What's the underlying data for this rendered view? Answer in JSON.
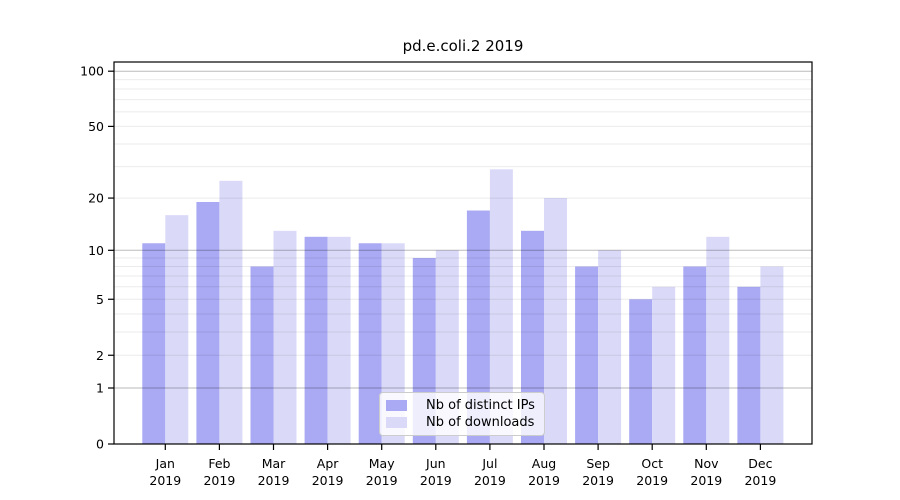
{
  "chart_data": {
    "type": "bar",
    "title": "pd.e.coli.2 2019",
    "categories": [
      "Jan 2019",
      "Feb 2019",
      "Mar 2019",
      "Apr 2019",
      "May 2019",
      "Jun 2019",
      "Jul 2019",
      "Aug 2019",
      "Sep 2019",
      "Oct 2019",
      "Nov 2019",
      "Dec 2019"
    ],
    "series": [
      {
        "name": "Nb of distinct IPs",
        "color": "#a9a9f4",
        "values": [
          11,
          19,
          8,
          12,
          11,
          9,
          17,
          13,
          8,
          5,
          8,
          6
        ]
      },
      {
        "name": "Nb of downloads",
        "color": "#dadaf8",
        "values": [
          16,
          25,
          13,
          12,
          11,
          10,
          29,
          20,
          10,
          6,
          12,
          8
        ]
      }
    ],
    "xlabel": "",
    "ylabel": "",
    "y_scale": "log10(value+1)",
    "y_ticks": [
      0,
      1,
      2,
      5,
      10,
      20,
      50,
      100
    ],
    "ylim": [
      0,
      113
    ],
    "gridlines": {
      "major": [
        1,
        10,
        100
      ],
      "minor": [
        2,
        3,
        4,
        5,
        6,
        7,
        8,
        9,
        20,
        30,
        40,
        50,
        60,
        70,
        80,
        90
      ]
    },
    "grid": true,
    "legend_position": "lower center",
    "colors": {
      "spine": "#000000",
      "grid_major": "#bdbdbd",
      "grid_minor": "#ebebeb",
      "background": "#ffffff",
      "text": "#000000"
    }
  }
}
